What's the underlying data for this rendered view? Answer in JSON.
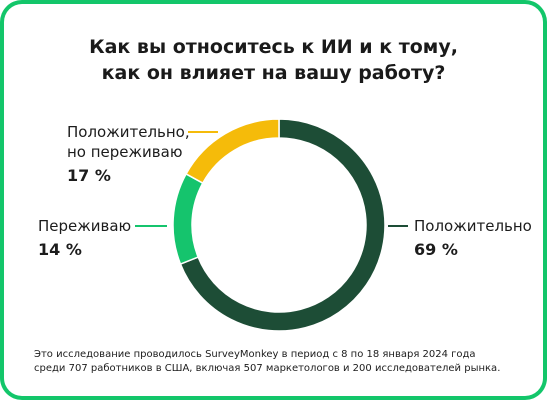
{
  "title": {
    "line1": "Как вы относитесь к ИИ и к тому,",
    "line2": "как он влияет на вашу работу?"
  },
  "chart_data": {
    "type": "pie",
    "variant": "donut",
    "categories": [
      "Положительно",
      "Переживаю",
      "Положительно, но переживаю"
    ],
    "values": [
      69,
      14,
      17
    ],
    "value_labels": [
      "69 %",
      "14 %",
      "17 %"
    ],
    "colors": [
      "#1d4d36",
      "#15c46d",
      "#f5bb0a"
    ],
    "label_lines": [
      [
        "Положительно"
      ],
      [
        "Переживаю"
      ],
      [
        "Положительно,",
        "но переживаю"
      ]
    ]
  },
  "footnote": {
    "line1": "Это исследование проводилось SurveyMonkey в период с 8 по 18 января 2024 года",
    "line2": "среди 707 работников в США, включая 507 маркетологов и 200 исследователей рынка."
  },
  "colors": {
    "frame": "#13c66a",
    "text": "#1c1c1c"
  }
}
